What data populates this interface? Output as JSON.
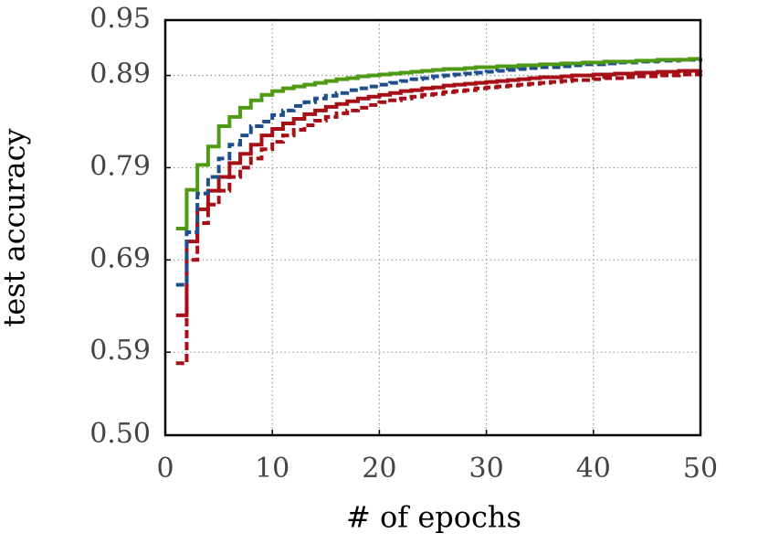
{
  "chart_data": {
    "type": "line",
    "step": "post",
    "xlabel": "# of epochs",
    "ylabel": "test accuracy",
    "x": [
      1,
      2,
      3,
      4,
      5,
      6,
      7,
      8,
      9,
      10,
      11,
      12,
      13,
      14,
      15,
      16,
      17,
      18,
      19,
      20,
      21,
      22,
      23,
      24,
      25,
      26,
      27,
      28,
      29,
      30,
      31,
      32,
      33,
      34,
      35,
      36,
      37,
      38,
      39,
      40,
      41,
      42,
      43,
      44,
      45,
      46,
      47,
      48,
      49,
      50
    ],
    "xlim": [
      0,
      50
    ],
    "xticks": [
      0,
      10,
      20,
      30,
      40,
      50
    ],
    "ylim": [
      0.5,
      0.95
    ],
    "yticks": [
      {
        "value": 0.5,
        "label": "0.50"
      },
      0.59,
      0.69,
      0.79,
      0.89,
      0.95
    ],
    "grid": true,
    "series": [
      {
        "color": "#a50f15",
        "dash": true,
        "values": [
          0.578,
          0.69,
          0.73,
          0.75,
          0.765,
          0.78,
          0.79,
          0.8,
          0.81,
          0.818,
          0.825,
          0.831,
          0.836,
          0.841,
          0.845,
          0.849,
          0.852,
          0.855,
          0.858,
          0.861,
          0.863,
          0.865,
          0.867,
          0.869,
          0.87,
          0.872,
          0.873,
          0.874,
          0.876,
          0.877,
          0.878,
          0.879,
          0.88,
          0.881,
          0.882,
          0.883,
          0.884,
          0.885,
          0.885,
          0.886,
          0.887,
          0.887,
          0.888,
          0.889,
          0.889,
          0.89,
          0.89,
          0.891,
          0.891,
          0.892
        ]
      },
      {
        "color": "#a50f15",
        "dash": false,
        "values": [
          0.63,
          0.71,
          0.745,
          0.765,
          0.78,
          0.795,
          0.805,
          0.815,
          0.825,
          0.832,
          0.838,
          0.843,
          0.848,
          0.852,
          0.856,
          0.859,
          0.862,
          0.865,
          0.867,
          0.869,
          0.871,
          0.873,
          0.874,
          0.876,
          0.877,
          0.879,
          0.88,
          0.881,
          0.882,
          0.883,
          0.884,
          0.885,
          0.886,
          0.887,
          0.888,
          0.888,
          0.889,
          0.89,
          0.89,
          0.891,
          0.891,
          0.892,
          0.892,
          0.893,
          0.893,
          0.894,
          0.894,
          0.895,
          0.895,
          0.896
        ]
      },
      {
        "color": "#1f4e8c",
        "dash": true,
        "values": [
          0.663,
          0.72,
          0.762,
          0.78,
          0.8,
          0.815,
          0.825,
          0.835,
          0.84,
          0.847,
          0.852,
          0.857,
          0.861,
          0.865,
          0.868,
          0.871,
          0.874,
          0.876,
          0.878,
          0.88,
          0.882,
          0.884,
          0.886,
          0.887,
          0.889,
          0.89,
          0.891,
          0.892,
          0.893,
          0.894,
          0.895,
          0.896,
          0.897,
          0.898,
          0.899,
          0.899,
          0.9,
          0.901,
          0.902,
          0.902,
          0.903,
          0.904,
          0.904,
          0.905,
          0.905,
          0.906,
          0.906,
          0.907,
          0.907,
          0.905
        ]
      },
      {
        "color": "#4e9a14",
        "dash": false,
        "values": [
          0.724,
          0.766,
          0.793,
          0.813,
          0.835,
          0.845,
          0.855,
          0.863,
          0.869,
          0.873,
          0.876,
          0.878,
          0.88,
          0.882,
          0.884,
          0.886,
          0.887,
          0.889,
          0.89,
          0.891,
          0.892,
          0.893,
          0.894,
          0.895,
          0.896,
          0.897,
          0.897,
          0.898,
          0.899,
          0.899,
          0.9,
          0.9,
          0.901,
          0.901,
          0.902,
          0.902,
          0.903,
          0.903,
          0.904,
          0.904,
          0.905,
          0.905,
          0.905,
          0.906,
          0.906,
          0.907,
          0.907,
          0.907,
          0.908,
          0.908
        ]
      }
    ]
  }
}
